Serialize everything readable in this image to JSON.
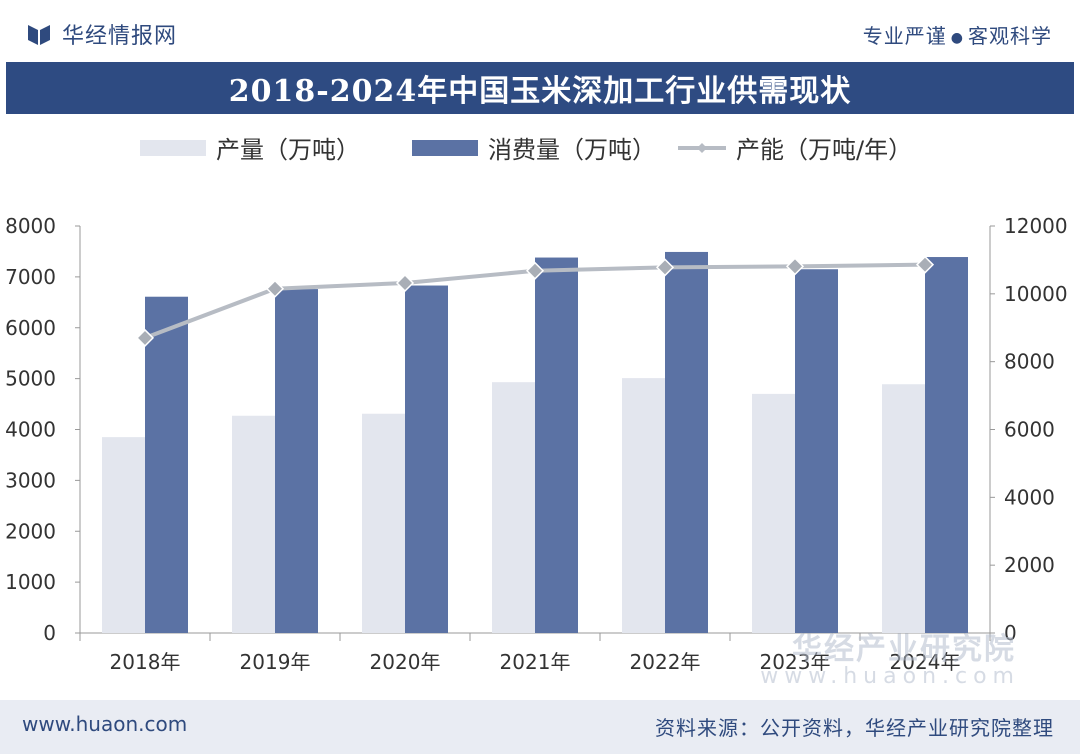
{
  "header": {
    "brand": "华经情报网",
    "slogan_left": "专业严谨",
    "slogan_dot": "●",
    "slogan_right": "客观科学"
  },
  "colors": {
    "primary": "#2e4b82",
    "production": "#e3e6ee",
    "consumption": "#5b72a4",
    "capacity": "#b7bcc4",
    "footer_bg": "#e9ecf3"
  },
  "chart_data": {
    "type": "bar",
    "title": "2018-2024年中国玉米深加工行业供需现状",
    "categories": [
      "2018年",
      "2019年",
      "2020年",
      "2021年",
      "2022年",
      "2023年",
      "2024年"
    ],
    "series": [
      {
        "name": "产量（万吨）",
        "kind": "bar",
        "axis": "left",
        "values": [
          3850,
          4270,
          4310,
          4930,
          5010,
          4700,
          4890
        ]
      },
      {
        "name": "消费量（万吨）",
        "kind": "bar",
        "axis": "left",
        "values": [
          6610,
          6760,
          6830,
          7380,
          7490,
          7150,
          7390
        ]
      },
      {
        "name": "产能（万吨/年）",
        "kind": "line",
        "axis": "right",
        "values": [
          8700,
          10150,
          10320,
          10680,
          10780,
          10810,
          10860
        ]
      }
    ],
    "y_left": {
      "min": 0,
      "max": 8000,
      "ticks": [
        0,
        1000,
        2000,
        3000,
        4000,
        5000,
        6000,
        7000,
        8000
      ]
    },
    "y_right": {
      "min": 0,
      "max": 12000,
      "ticks": [
        0,
        2000,
        4000,
        6000,
        8000,
        10000,
        12000
      ]
    },
    "legend_position": "top",
    "grid": false
  },
  "watermark": {
    "text": "华经产业研究院",
    "url": "www.huaon.com"
  },
  "footer": {
    "url": "www.huaon.com",
    "source": "资料来源：公开资料，华经产业研究院整理"
  }
}
